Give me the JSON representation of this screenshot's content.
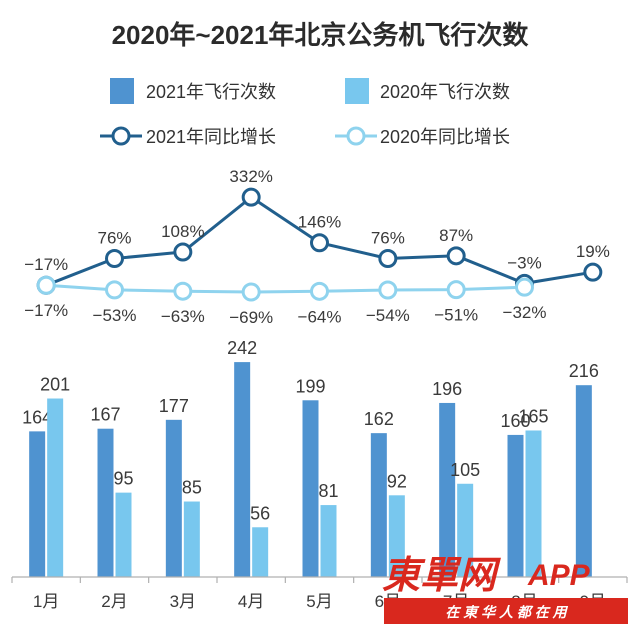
{
  "chart_data": {
    "title": "2020年~2021年北京公务机飞行次数",
    "categories": [
      "1月",
      "2月",
      "3月",
      "4月",
      "5月",
      "6月",
      "7月",
      "8月",
      "9月"
    ],
    "bar_series": [
      {
        "name": "2021年飞行次数",
        "values": [
          164,
          167,
          177,
          242,
          199,
          162,
          196,
          160,
          216
        ],
        "color": "#4f93d0"
      },
      {
        "name": "2020年飞行次数",
        "values": [
          201,
          95,
          85,
          56,
          81,
          92,
          105,
          165,
          null
        ],
        "color": "#78c7ee"
      }
    ],
    "line_series": [
      {
        "name": "2021年同比增长",
        "values": [
          -17,
          76,
          108,
          332,
          146,
          76,
          87,
          -3,
          19
        ],
        "labels": [
          "−17%",
          "76%",
          "108%",
          "332%",
          "146%",
          "76%",
          "87%",
          "−3%",
          "19%"
        ],
        "color": "#215f8d"
      },
      {
        "name": "2020年同比增长",
        "values": [
          -17,
          -53,
          -63,
          -69,
          -64,
          -54,
          -51,
          -32,
          null
        ],
        "labels": [
          "−17%",
          "−53%",
          "−63%",
          "−69%",
          "−64%",
          "−54%",
          "−51%",
          "−32%",
          ""
        ],
        "color": "#8fd3ee"
      }
    ],
    "types": [
      "bar",
      "line"
    ],
    "legend": "top"
  },
  "watermark": {
    "brand": "東單网",
    "app": "APP",
    "slogan": "在 東 华 人 都 在 用"
  }
}
